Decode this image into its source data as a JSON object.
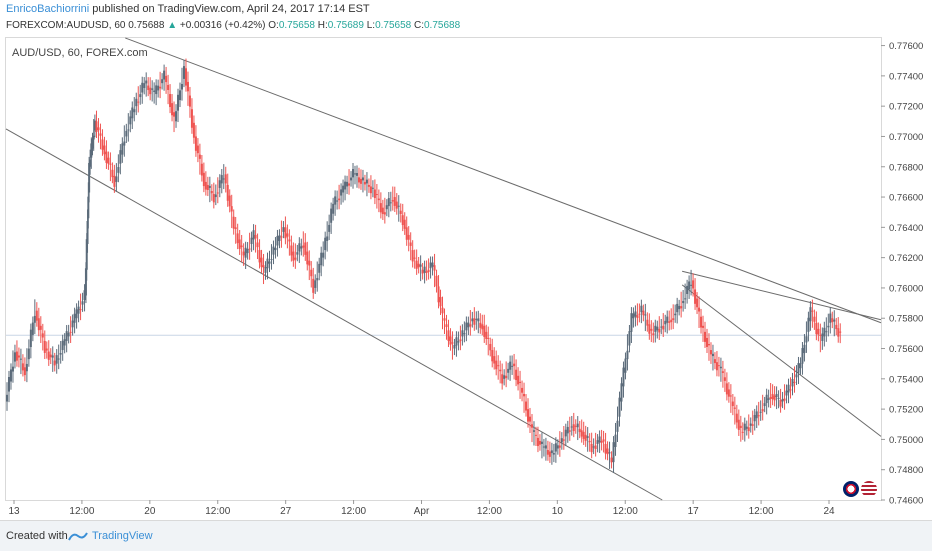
{
  "header": {
    "author": "EnricoBachiorrini",
    "published": " published on TradingView.com, April 24, 2017 17:14 EST",
    "symbol": "FOREXCOM:AUDUSD, 60",
    "last": "0.75688",
    "change": "+0.00316 (+0.42%)",
    "o_label": "O:",
    "o": "0.75658",
    "h_label": "H:",
    "h": "0.75689",
    "l_label": "L:",
    "l": "0.75658",
    "c_label": "C:",
    "c": "0.75688"
  },
  "chart_label": "AUD/USD, 60, FOREX.com",
  "footer": {
    "created": "Created with",
    "brand": "TradingView"
  },
  "colors": {
    "up": "#26a69a",
    "down": "#ef5350",
    "candle": "#5b6b7a",
    "line": "#6b6b6b",
    "price_line": "#c9d6e6",
    "accent": "#3a8fd6"
  },
  "chart_data": {
    "type": "line",
    "title": "AUD/USD, 60, FOREX.com",
    "ylim": [
      0.746,
      0.7765
    ],
    "y_ticks": [
      "0.77600",
      "0.77400",
      "0.77200",
      "0.77000",
      "0.76800",
      "0.76600",
      "0.76400",
      "0.76200",
      "0.76000",
      "0.75800",
      "0.75600",
      "0.75400",
      "0.75200",
      "0.75000",
      "0.74800",
      "0.74600"
    ],
    "x_ticks": [
      "13",
      "12:00",
      "20",
      "12:00",
      "27",
      "12:00",
      "Apr",
      "12:00",
      "10",
      "12:00",
      "17",
      "12:00",
      "24"
    ],
    "last_price": 0.75688,
    "price_series": [
      {
        "t": 0,
        "v": 0.7525
      },
      {
        "t": 0.5,
        "v": 0.7558
      },
      {
        "t": 1,
        "v": 0.7545
      },
      {
        "t": 1.5,
        "v": 0.7585
      },
      {
        "t": 2,
        "v": 0.756
      },
      {
        "t": 2.5,
        "v": 0.755
      },
      {
        "t": 3,
        "v": 0.7565
      },
      {
        "t": 3.5,
        "v": 0.758
      },
      {
        "t": 4,
        "v": 0.7595
      },
      {
        "t": 4.2,
        "v": 0.768
      },
      {
        "t": 4.5,
        "v": 0.771
      },
      {
        "t": 5,
        "v": 0.769
      },
      {
        "t": 5.5,
        "v": 0.767
      },
      {
        "t": 6,
        "v": 0.77
      },
      {
        "t": 6.5,
        "v": 0.772
      },
      {
        "t": 7,
        "v": 0.7735
      },
      {
        "t": 7.5,
        "v": 0.7728
      },
      {
        "t": 8,
        "v": 0.774
      },
      {
        "t": 8.5,
        "v": 0.771
      },
      {
        "t": 9,
        "v": 0.7745
      },
      {
        "t": 9.5,
        "v": 0.77
      },
      {
        "t": 10,
        "v": 0.767
      },
      {
        "t": 10.5,
        "v": 0.766
      },
      {
        "t": 11,
        "v": 0.7675
      },
      {
        "t": 11.5,
        "v": 0.764
      },
      {
        "t": 12,
        "v": 0.762
      },
      {
        "t": 12.5,
        "v": 0.7635
      },
      {
        "t": 13,
        "v": 0.761
      },
      {
        "t": 13.5,
        "v": 0.7625
      },
      {
        "t": 14,
        "v": 0.764
      },
      {
        "t": 14.5,
        "v": 0.762
      },
      {
        "t": 15,
        "v": 0.763
      },
      {
        "t": 15.5,
        "v": 0.76
      },
      {
        "t": 16,
        "v": 0.7625
      },
      {
        "t": 16.5,
        "v": 0.7655
      },
      {
        "t": 17,
        "v": 0.7665
      },
      {
        "t": 17.5,
        "v": 0.7675
      },
      {
        "t": 18,
        "v": 0.767
      },
      {
        "t": 18.5,
        "v": 0.7665
      },
      {
        "t": 19,
        "v": 0.765
      },
      {
        "t": 19.5,
        "v": 0.766
      },
      {
        "t": 20,
        "v": 0.7645
      },
      {
        "t": 20.5,
        "v": 0.762
      },
      {
        "t": 21,
        "v": 0.761
      },
      {
        "t": 21.5,
        "v": 0.7615
      },
      {
        "t": 22,
        "v": 0.758
      },
      {
        "t": 22.5,
        "v": 0.756
      },
      {
        "t": 23,
        "v": 0.757
      },
      {
        "t": 23.5,
        "v": 0.758
      },
      {
        "t": 24,
        "v": 0.7575
      },
      {
        "t": 24.5,
        "v": 0.7555
      },
      {
        "t": 25,
        "v": 0.754
      },
      {
        "t": 25.5,
        "v": 0.755
      },
      {
        "t": 26,
        "v": 0.753
      },
      {
        "t": 26.5,
        "v": 0.7505
      },
      {
        "t": 27,
        "v": 0.7495
      },
      {
        "t": 27.5,
        "v": 0.749
      },
      {
        "t": 28,
        "v": 0.75
      },
      {
        "t": 28.5,
        "v": 0.751
      },
      {
        "t": 29,
        "v": 0.7505
      },
      {
        "t": 29.5,
        "v": 0.7495
      },
      {
        "t": 30,
        "v": 0.75
      },
      {
        "t": 30.5,
        "v": 0.7485
      },
      {
        "t": 31,
        "v": 0.7535
      },
      {
        "t": 31.5,
        "v": 0.758
      },
      {
        "t": 32,
        "v": 0.7585
      },
      {
        "t": 32.5,
        "v": 0.757
      },
      {
        "t": 33,
        "v": 0.7575
      },
      {
        "t": 33.5,
        "v": 0.758
      },
      {
        "t": 34,
        "v": 0.759
      },
      {
        "t": 34.5,
        "v": 0.7605
      },
      {
        "t": 35,
        "v": 0.7575
      },
      {
        "t": 35.5,
        "v": 0.7555
      },
      {
        "t": 36,
        "v": 0.7545
      },
      {
        "t": 36.5,
        "v": 0.7525
      },
      {
        "t": 37,
        "v": 0.7505
      },
      {
        "t": 37.5,
        "v": 0.751
      },
      {
        "t": 38,
        "v": 0.752
      },
      {
        "t": 38.5,
        "v": 0.753
      },
      {
        "t": 39,
        "v": 0.7525
      },
      {
        "t": 39.5,
        "v": 0.7535
      },
      {
        "t": 40,
        "v": 0.755
      },
      {
        "t": 40.5,
        "v": 0.7585
      },
      {
        "t": 41,
        "v": 0.7565
      },
      {
        "t": 41.5,
        "v": 0.758
      },
      {
        "t": 42,
        "v": 0.7569
      }
    ],
    "trendlines": [
      {
        "name": "channel-upper",
        "from": [
          6,
          0.7765
        ],
        "to": [
          44,
          0.7577
        ]
      },
      {
        "name": "channel-lower",
        "from": [
          0,
          0.7705
        ],
        "to": [
          33,
          0.746
        ]
      },
      {
        "name": "lower-extension",
        "from": [
          34,
          0.7602
        ],
        "to": [
          44,
          0.7502
        ]
      },
      {
        "name": "resistance",
        "from": [
          34,
          0.7611
        ],
        "to": [
          44,
          0.7579
        ]
      }
    ]
  }
}
